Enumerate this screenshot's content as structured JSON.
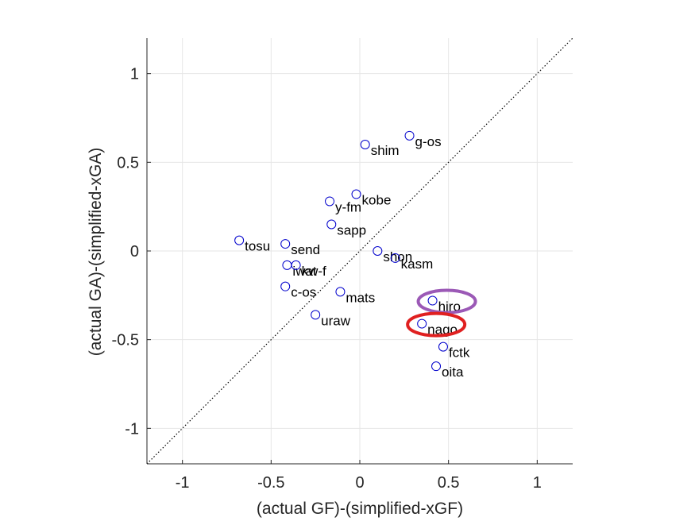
{
  "chart_data": {
    "type": "scatter",
    "xlabel": "(actual GF)-(simplified-xGF)",
    "ylabel": "(actual GA)-(simplified-xGA)",
    "xlim": [
      -1.2,
      1.2
    ],
    "ylim": [
      -1.2,
      1.2
    ],
    "xticks": [
      -1,
      -0.5,
      0,
      0.5,
      1
    ],
    "yticks": [
      -1,
      -0.5,
      0,
      0.5,
      1
    ],
    "grid": true,
    "reference_line": {
      "type": "y=x",
      "style": "dotted"
    },
    "marker_color": "#0000cc",
    "points": [
      {
        "label": "g-os",
        "x": 0.28,
        "y": 0.65
      },
      {
        "label": "shim",
        "x": 0.03,
        "y": 0.6
      },
      {
        "label": "kobe",
        "x": -0.02,
        "y": 0.32
      },
      {
        "label": "y-fm",
        "x": -0.17,
        "y": 0.28
      },
      {
        "label": "sapp",
        "x": -0.16,
        "y": 0.15
      },
      {
        "label": "tosu",
        "x": -0.68,
        "y": 0.06
      },
      {
        "label": "send",
        "x": -0.42,
        "y": 0.04
      },
      {
        "label": "shon",
        "x": 0.1,
        "y": 0.0
      },
      {
        "label": "kasm",
        "x": 0.2,
        "y": -0.04
      },
      {
        "label": "iwat",
        "x": -0.41,
        "y": -0.08
      },
      {
        "label": "kw-f",
        "x": -0.36,
        "y": -0.08
      },
      {
        "label": "c-os",
        "x": -0.42,
        "y": -0.2
      },
      {
        "label": "mats",
        "x": -0.11,
        "y": -0.23
      },
      {
        "label": "uraw",
        "x": -0.25,
        "y": -0.36
      },
      {
        "label": "hiro",
        "x": 0.41,
        "y": -0.28
      },
      {
        "label": "nago",
        "x": 0.35,
        "y": -0.41
      },
      {
        "label": "fctk",
        "x": 0.47,
        "y": -0.54
      },
      {
        "label": "oita",
        "x": 0.43,
        "y": -0.65
      }
    ],
    "highlights": [
      {
        "label": "hiro",
        "color": "#9b59b6"
      },
      {
        "label": "nago",
        "color": "#e02020"
      }
    ]
  }
}
